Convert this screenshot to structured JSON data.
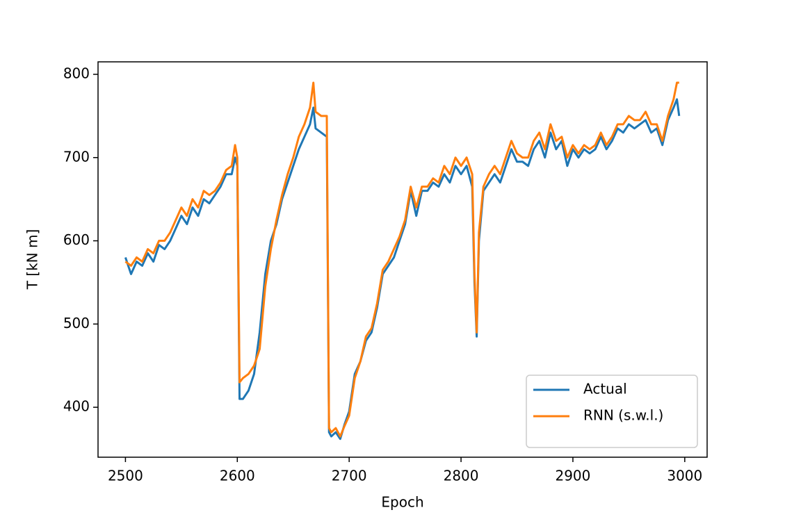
{
  "chart_data": {
    "type": "line",
    "xlabel": "Epoch",
    "ylabel": "T [kN m]",
    "xlim": [
      2475.5,
      3020
    ],
    "ylim": [
      340,
      815
    ],
    "xticks": [
      2500,
      2600,
      2700,
      2800,
      2900,
      3000
    ],
    "yticks": [
      400,
      500,
      600,
      700,
      800
    ],
    "legend": "lower right",
    "x": [
      2500,
      2505,
      2510,
      2515,
      2520,
      2525,
      2530,
      2535,
      2540,
      2545,
      2550,
      2555,
      2560,
      2565,
      2570,
      2575,
      2580,
      2585,
      2590,
      2595,
      2598,
      2600,
      2602,
      2605,
      2610,
      2615,
      2620,
      2625,
      2630,
      2635,
      2640,
      2645,
      2650,
      2655,
      2660,
      2665,
      2668,
      2670,
      2675,
      2680,
      2682,
      2684,
      2688,
      2692,
      2696,
      2700,
      2705,
      2710,
      2715,
      2720,
      2725,
      2730,
      2735,
      2740,
      2745,
      2750,
      2755,
      2760,
      2765,
      2770,
      2775,
      2780,
      2785,
      2790,
      2795,
      2800,
      2805,
      2810,
      2812,
      2814,
      2816,
      2820,
      2825,
      2830,
      2835,
      2840,
      2845,
      2850,
      2855,
      2860,
      2865,
      2870,
      2875,
      2880,
      2885,
      2890,
      2895,
      2900,
      2905,
      2910,
      2915,
      2920,
      2925,
      2930,
      2935,
      2940,
      2945,
      2950,
      2955,
      2960,
      2965,
      2970,
      2975,
      2980,
      2985,
      2990,
      2993,
      2995
    ],
    "series": [
      {
        "name": "Actual",
        "color": "#1f77b4",
        "values": [
          580,
          560,
          575,
          570,
          585,
          575,
          595,
          590,
          600,
          615,
          630,
          620,
          640,
          630,
          650,
          645,
          655,
          665,
          680,
          680,
          700,
          690,
          410,
          410,
          420,
          440,
          490,
          560,
          600,
          620,
          650,
          670,
          690,
          710,
          725,
          740,
          760,
          735,
          730,
          725,
          370,
          365,
          370,
          362,
          380,
          395,
          440,
          455,
          480,
          490,
          520,
          560,
          570,
          580,
          600,
          620,
          660,
          630,
          660,
          660,
          670,
          665,
          680,
          670,
          690,
          680,
          690,
          665,
          550,
          485,
          600,
          660,
          670,
          680,
          670,
          690,
          710,
          695,
          695,
          690,
          710,
          720,
          700,
          730,
          710,
          720,
          690,
          710,
          700,
          710,
          705,
          710,
          725,
          710,
          720,
          735,
          730,
          740,
          735,
          740,
          745,
          730,
          735,
          715,
          745,
          760,
          770,
          750
        ]
      },
      {
        "name": "RNN (s.w.l.)",
        "color": "#ff7f0e",
        "values": [
          575,
          570,
          580,
          575,
          590,
          585,
          600,
          600,
          610,
          625,
          640,
          630,
          650,
          640,
          660,
          655,
          660,
          670,
          685,
          690,
          715,
          700,
          430,
          435,
          440,
          450,
          470,
          545,
          590,
          625,
          655,
          680,
          700,
          725,
          740,
          760,
          790,
          755,
          750,
          750,
          375,
          370,
          375,
          365,
          378,
          390,
          435,
          455,
          485,
          495,
          525,
          565,
          575,
          590,
          605,
          625,
          665,
          640,
          665,
          665,
          675,
          670,
          690,
          680,
          700,
          690,
          700,
          680,
          560,
          490,
          610,
          665,
          680,
          690,
          680,
          700,
          720,
          705,
          700,
          700,
          720,
          730,
          710,
          740,
          720,
          725,
          700,
          715,
          705,
          715,
          710,
          715,
          730,
          715,
          725,
          740,
          740,
          750,
          745,
          745,
          755,
          740,
          740,
          720,
          750,
          770,
          790,
          790
        ]
      }
    ]
  }
}
